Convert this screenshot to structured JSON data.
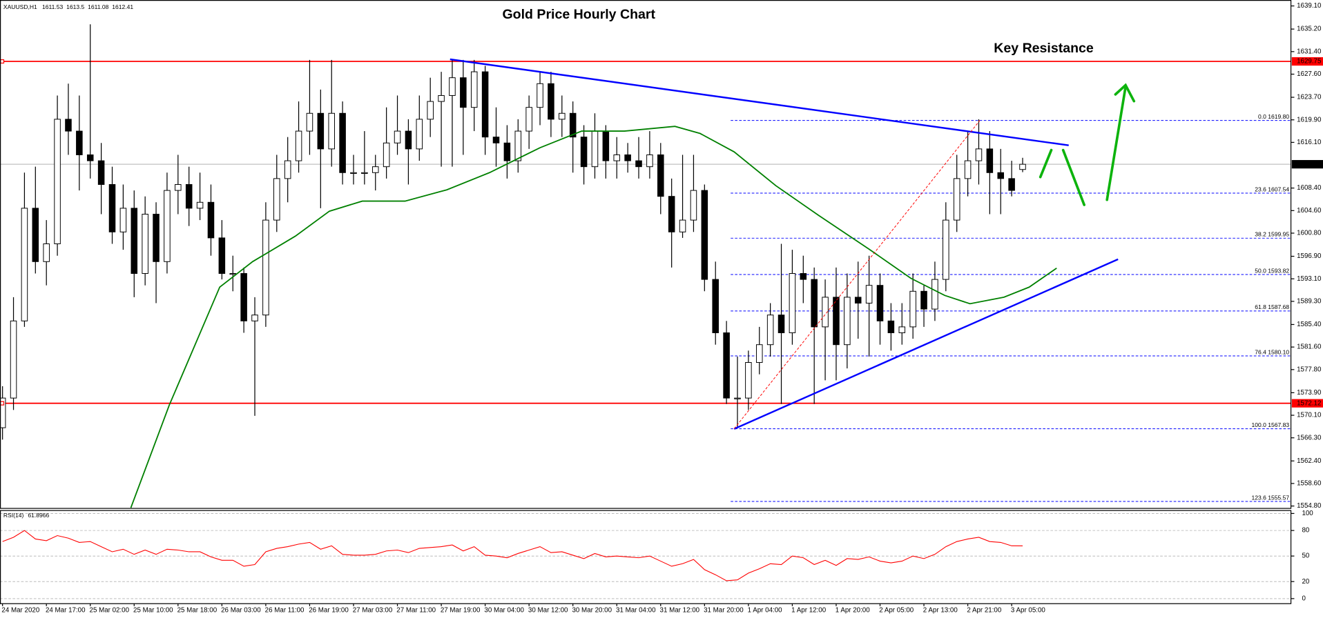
{
  "chart_data": {
    "type": "candlestick",
    "title": "Gold Price Hourly Chart",
    "symbol": "XAUUSD,H1",
    "categories": [
      "24 Mar 2020",
      null,
      null,
      null,
      "24 Mar 17:00",
      null,
      null,
      null,
      "25 Mar 02:00",
      null,
      null,
      null,
      "25 Mar 10:00",
      null,
      null,
      null,
      "25 Mar 18:00",
      null,
      null,
      null,
      "26 Mar 03:00",
      null,
      null,
      null,
      "26 Mar 11:00",
      null,
      null,
      null,
      "26 Mar 19:00",
      null,
      null,
      null,
      "27 Mar 03:00",
      null,
      null,
      null,
      "27 Mar 11:00",
      null,
      null,
      null,
      "27 Mar 19:00",
      null,
      null,
      null,
      "30 Mar 04:00",
      null,
      null,
      null,
      "30 Mar 12:00",
      null,
      null,
      null,
      "30 Mar 20:00",
      null,
      null,
      null,
      "31 Mar 04:00",
      null,
      null,
      null,
      "31 Mar 12:00",
      null,
      null,
      null,
      "31 Mar 20:00",
      null,
      null,
      null,
      "1 Apr 04:00",
      null,
      null,
      null,
      "1 Apr 12:00",
      null,
      null,
      null,
      "1 Apr 20:00",
      null,
      null,
      null,
      "2 Apr 05:00",
      null,
      null,
      null,
      "2 Apr 13:00",
      null,
      null,
      null,
      "2 Apr 21:00",
      null,
      null,
      null,
      "3 Apr 05:00",
      null
    ],
    "open": [
      1568,
      1573,
      1586,
      1605,
      1596,
      1599,
      1620,
      1618,
      1614,
      1613,
      1609,
      1601,
      1605,
      1594,
      1604,
      1596,
      1608,
      1609,
      1605,
      1606,
      1600,
      1594,
      1594,
      1586,
      1587,
      1603,
      1610,
      1613,
      1618,
      1621,
      1615,
      1621,
      1611,
      1611,
      1611,
      1612,
      1616,
      1618,
      1615,
      1620,
      1623,
      1624,
      1627,
      1622,
      1628,
      1617,
      1616,
      1613,
      1618,
      1622,
      1626,
      1620,
      1621,
      1617,
      1612,
      1618,
      1613,
      1614,
      1613,
      1612,
      1614,
      1607,
      1601,
      1603,
      1608,
      1593,
      1584,
      1573,
      1573,
      1579,
      1582,
      1587,
      1584,
      1594,
      1593,
      1585,
      1590,
      1582,
      1590,
      1589,
      1592,
      1586,
      1584,
      1585,
      1591,
      1588,
      1593,
      1603,
      1610,
      1613,
      1615,
      1611,
      1610,
      1611.53
    ],
    "high": [
      1575,
      1590,
      1611,
      1612,
      1603,
      1624,
      1626,
      1624,
      1636,
      1616,
      1612,
      1609,
      1608,
      1607,
      1606,
      1611,
      1614,
      1612,
      1611,
      1609,
      1603,
      1597,
      1595,
      1590,
      1606,
      1614,
      1617,
      1623,
      1630,
      1625,
      1630,
      1623,
      1614,
      1618,
      1614,
      1622,
      1624,
      1620,
      1624,
      1627,
      1628,
      1630,
      1630,
      1630,
      1629,
      1622,
      1619,
      1620,
      1624,
      1628,
      1628,
      1624,
      1623,
      1619,
      1621,
      1619,
      1617,
      1616,
      1617,
      1618,
      1616,
      1610,
      1614,
      1614,
      1609,
      1596,
      1586,
      1580,
      1581,
      1585,
      1589,
      1599,
      1598,
      1597,
      1595,
      1593,
      1595,
      1594,
      1596,
      1597,
      1594,
      1589,
      1589,
      1594,
      1592,
      1596,
      1606,
      1614,
      1618,
      1620,
      1618,
      1615,
      1613,
      1613.5
    ],
    "low": [
      1566,
      1571,
      1585,
      1594,
      1592,
      1597,
      1614,
      1608,
      1610,
      1604,
      1599,
      1598,
      1590,
      1592,
      1589,
      1594,
      1604,
      1602,
      1603,
      1597,
      1593,
      1591,
      1584,
      1570,
      1585,
      1601,
      1606,
      1611,
      1614,
      1605,
      1612,
      1609,
      1609,
      1609,
      1608,
      1610,
      1614,
      1609,
      1613,
      1617,
      1612,
      1612,
      1614,
      1618,
      1614,
      1612,
      1610,
      1611,
      1615,
      1619,
      1617,
      1617,
      1611,
      1609,
      1610,
      1610,
      1610,
      1611,
      1610,
      1610,
      1604,
      1595,
      1600,
      1601,
      1591,
      1582,
      1572,
      1568,
      1571,
      1577,
      1580,
      1572,
      1582,
      1589,
      1572,
      1576,
      1576,
      1578,
      1583,
      1580,
      1582,
      1581,
      1582,
      1583,
      1585,
      1586,
      1591,
      1601,
      1607,
      1609,
      1604,
      1604,
      1607,
      1611.08
    ],
    "close": [
      1573,
      1586,
      1605,
      1596,
      1599,
      1620,
      1618,
      1614,
      1613,
      1609,
      1601,
      1605,
      1594,
      1604,
      1596,
      1608,
      1609,
      1605,
      1606,
      1600,
      1594,
      1594,
      1586,
      1587,
      1603,
      1610,
      1613,
      1618,
      1621,
      1615,
      1621,
      1611,
      1611,
      1611,
      1612,
      1616,
      1618,
      1615,
      1620,
      1623,
      1624,
      1627,
      1622,
      1628,
      1617,
      1616,
      1613,
      1618,
      1622,
      1626,
      1620,
      1621,
      1617,
      1612,
      1618,
      1613,
      1614,
      1613,
      1612,
      1614,
      1607,
      1601,
      1603,
      1608,
      1593,
      1584,
      1573,
      1573,
      1579,
      1582,
      1587,
      1584,
      1594,
      1593,
      1585,
      1590,
      1582,
      1590,
      1589,
      1592,
      1586,
      1584,
      1585,
      1591,
      1588,
      1593,
      1603,
      1610,
      1613,
      1615,
      1611,
      1610,
      1608,
      1612.41
    ],
    "up_color": "#ffffff",
    "down_color": "#000000",
    "wick_color": "#000000",
    "xlim": [
      -0.23,
      117.46
    ],
    "ylim": [
      1554.4,
      1640.1
    ],
    "yticks": [
      {
        "value": 1639.1,
        "label": "1639.10"
      },
      {
        "value": 1635.2,
        "label": "1635.20"
      },
      {
        "value": 1631.4,
        "label": "1631.40"
      },
      {
        "value": 1627.6,
        "label": "1627.60"
      },
      {
        "value": 1623.7,
        "label": "1623.70"
      },
      {
        "value": 1619.9,
        "label": "1619.90"
      },
      {
        "value": 1616.1,
        "label": "1616.10"
      },
      {
        "value": 1608.4,
        "label": "1608.40"
      },
      {
        "value": 1604.6,
        "label": "1604.60"
      },
      {
        "value": 1600.8,
        "label": "1600.80"
      },
      {
        "value": 1596.9,
        "label": "1596.90"
      },
      {
        "value": 1593.1,
        "label": "1593.10"
      },
      {
        "value": 1589.3,
        "label": "1589.30"
      },
      {
        "value": 1585.4,
        "label": "1585.40"
      },
      {
        "value": 1581.6,
        "label": "1581.60"
      },
      {
        "value": 1577.8,
        "label": "1577.80"
      },
      {
        "value": 1573.9,
        "label": "1573.90"
      },
      {
        "value": 1570.1,
        "label": "1570.10"
      },
      {
        "value": 1566.3,
        "label": "1566.30"
      },
      {
        "value": 1562.4,
        "label": "1562.40"
      },
      {
        "value": 1558.6,
        "label": "1558.60"
      },
      {
        "value": 1554.8,
        "label": "1554.80"
      }
    ],
    "current_price_color": "#c0c0c0",
    "levels": [
      {
        "value": 1629.75,
        "color": "#ff0000"
      },
      {
        "value": 1572.12,
        "color": "#ff0000"
      }
    ],
    "fib_color": "#0000ff",
    "fib": [
      {
        "value": 1619.8,
        "label": "0.0 1619.80"
      },
      {
        "value": 1607.54,
        "label": "23.6 1607.54"
      },
      {
        "value": 1599.95,
        "label": "38.2 1599.95"
      },
      {
        "value": 1593.82,
        "label": "50.0 1593.82"
      },
      {
        "value": 1587.68,
        "label": "61.8 1587.68"
      },
      {
        "value": 1580.1,
        "label": "76.4 1580.10"
      },
      {
        "value": 1567.83,
        "label": "100.0 1567.83"
      },
      {
        "value": 1555.57,
        "label": "123.6 1555.57"
      }
    ],
    "trendlines": [
      {
        "color": "#0000ff",
        "dashed": false,
        "points": [
          [
            40.8,
            1630.1
          ],
          [
            97.2,
            1615.6
          ]
        ]
      },
      {
        "color": "#0000ff",
        "dashed": false,
        "points": [
          [
            66.7,
            1567.8
          ],
          [
            101.7,
            1596.4
          ]
        ]
      },
      {
        "color": "#ff0000",
        "dashed": true,
        "points": [
          [
            66.7,
            1567.83
          ],
          [
            89.1,
            1619.8
          ]
        ]
      }
    ],
    "ma": {
      "color": "#008000",
      "x": [
        11.7,
        15.2,
        19.8,
        22.8,
        26.7,
        29.8,
        32.8,
        36.7,
        40.5,
        44.4,
        49,
        52.8,
        56.7,
        61.3,
        63.6,
        66.7,
        70.5,
        74.4,
        79,
        82.8,
        85.9,
        88.2,
        91.3,
        93.6,
        96.1
      ],
      "values": [
        1554.5,
        1571.8,
        1591.7,
        1596,
        1600.3,
        1604.5,
        1606.2,
        1606.2,
        1608.1,
        1611,
        1615.2,
        1618,
        1618,
        1618.8,
        1617.6,
        1614.5,
        1608.8,
        1603.8,
        1598.1,
        1593.2,
        1590.3,
        1588.9,
        1590,
        1591.7,
        1594.9
      ]
    },
    "annotation": {
      "text": "Key Resistance",
      "color": "#ff0000"
    },
    "rsi": {
      "label": "RSI(14)",
      "color": "#ff0000",
      "ylim": [
        0,
        100
      ],
      "yticks": [
        0,
        20,
        50,
        80,
        100
      ],
      "values": [
        67,
        72,
        80,
        70,
        68,
        74,
        71,
        66,
        67,
        61,
        55,
        58,
        52,
        57,
        52,
        58,
        57,
        55,
        55,
        49,
        45,
        45,
        38,
        40,
        55,
        59,
        61,
        64,
        66,
        58,
        62,
        52,
        51,
        51,
        52,
        56,
        57,
        54,
        59,
        60,
        61,
        63,
        56,
        61,
        51,
        50,
        48,
        53,
        57,
        61,
        54,
        55,
        51,
        47,
        53,
        49,
        50,
        49,
        48,
        50,
        44,
        38,
        41,
        46,
        34,
        28,
        21,
        22,
        30,
        35,
        41,
        40,
        50,
        48,
        40,
        45,
        39,
        47,
        46,
        49,
        44,
        42,
        44,
        50,
        47,
        52,
        61,
        67,
        70,
        72,
        67,
        66,
        62,
        61.8966
      ]
    }
  }
}
